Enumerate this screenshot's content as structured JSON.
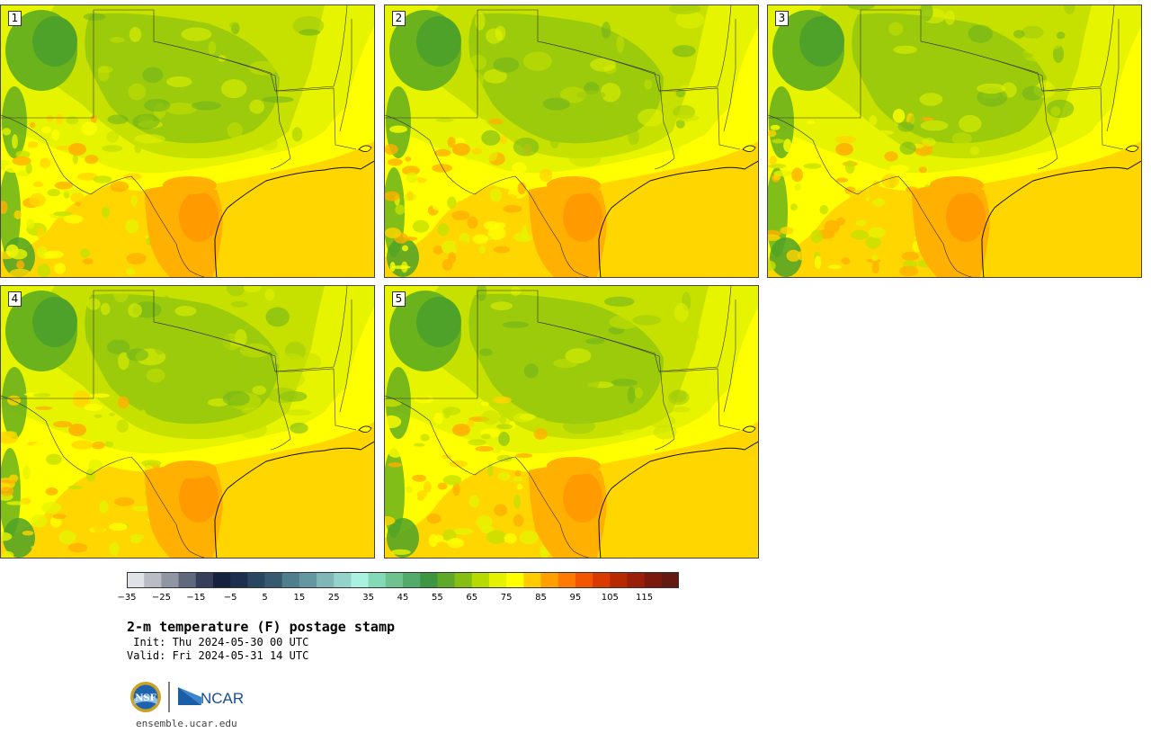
{
  "title": "2-m temperature (F) postage stamp",
  "init": " Init: Thu 2024-05-30 00 UTC",
  "valid": "Valid: Fri 2024-05-31 14 UTC",
  "website": "ensemble.ucar.edu",
  "logos": {
    "nsf": "NSF",
    "ncar": "NCAR"
  },
  "members": [
    {
      "label": "1"
    },
    {
      "label": "2"
    },
    {
      "label": "3"
    },
    {
      "label": "4"
    },
    {
      "label": "5"
    }
  ],
  "colorbar": {
    "units": "F",
    "colors": [
      "#dfe2e6",
      "#b9bcc4",
      "#8f95a3",
      "#5f687d",
      "#353f5c",
      "#16213f",
      "#1e2f4d",
      "#284660",
      "#365b70",
      "#4f7f8c",
      "#6497a0",
      "#7fb6b6",
      "#94d3cb",
      "#a9f1e1",
      "#84dab6",
      "#6dc28e",
      "#52ab6b",
      "#3f9642",
      "#5ea82a",
      "#86bf14",
      "#b7db00",
      "#e4f200",
      "#ffff00",
      "#ffcc00",
      "#ffa000",
      "#ff7a00",
      "#f45500",
      "#d83a00",
      "#b72a00",
      "#9a1f08",
      "#7b1a0c",
      "#641a10"
    ],
    "ticks": [
      "−35",
      "−25",
      "−15",
      "−5",
      "5",
      "15",
      "25",
      "35",
      "45",
      "55",
      "65",
      "75",
      "85",
      "95",
      "105",
      "115"
    ]
  }
}
